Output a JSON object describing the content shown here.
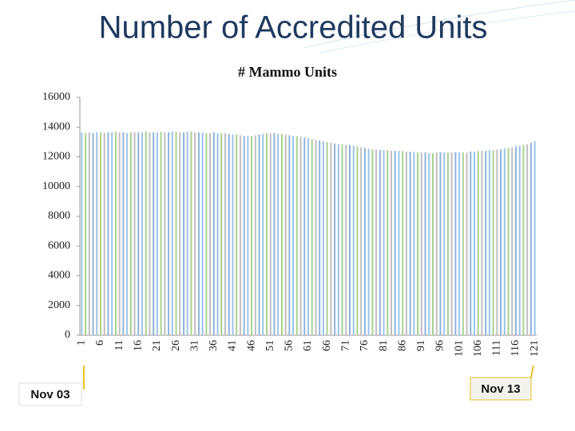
{
  "slide_title": "Number of Accredited Units",
  "chart_data": {
    "type": "bar",
    "title": "# Mammo Units",
    "categories": [
      "1",
      null,
      null,
      null,
      null,
      "6",
      null,
      null,
      null,
      null,
      "11",
      null,
      null,
      null,
      null,
      "16",
      null,
      null,
      null,
      null,
      "21",
      null,
      null,
      null,
      null,
      "26",
      null,
      null,
      null,
      null,
      "31",
      null,
      null,
      null,
      null,
      "36",
      null,
      null,
      null,
      null,
      "41",
      null,
      null,
      null,
      null,
      "46",
      null,
      null,
      null,
      null,
      "51",
      null,
      null,
      null,
      null,
      "56",
      null,
      null,
      null,
      null,
      "61",
      null,
      null,
      null,
      null,
      "66",
      null,
      null,
      null,
      null,
      "71",
      null,
      null,
      null,
      null,
      "76",
      null,
      null,
      null,
      null,
      "81",
      null,
      null,
      null,
      null,
      "86",
      null,
      null,
      null,
      null,
      "91",
      null,
      null,
      null,
      null,
      "96",
      null,
      null,
      null,
      null,
      "101",
      null,
      null,
      null,
      null,
      "106",
      null,
      null,
      null,
      null,
      "111",
      null,
      null,
      null,
      null,
      "116",
      null,
      null,
      null,
      null,
      "121"
    ],
    "values": [
      13650,
      13600,
      13650,
      13600,
      13650,
      13650,
      13600,
      13650,
      13650,
      13700,
      13650,
      13650,
      13600,
      13650,
      13650,
      13650,
      13650,
      13700,
      13650,
      13650,
      13650,
      13700,
      13650,
      13650,
      13700,
      13700,
      13650,
      13650,
      13700,
      13700,
      13650,
      13650,
      13650,
      13600,
      13600,
      13650,
      13600,
      13600,
      13600,
      13550,
      13500,
      13500,
      13450,
      13400,
      13400,
      13400,
      13450,
      13500,
      13550,
      13600,
      13600,
      13600,
      13550,
      13550,
      13500,
      13450,
      13400,
      13400,
      13350,
      13300,
      13250,
      13200,
      13150,
      13100,
      13050,
      13000,
      12950,
      12900,
      12850,
      12850,
      12800,
      12800,
      12750,
      12700,
      12650,
      12600,
      12550,
      12500,
      12500,
      12450,
      12450,
      12450,
      12400,
      12400,
      12400,
      12400,
      12350,
      12350,
      12300,
      12300,
      12300,
      12300,
      12250,
      12250,
      12300,
      12300,
      12300,
      12300,
      12300,
      12300,
      12300,
      12300,
      12300,
      12350,
      12350,
      12400,
      12400,
      12400,
      12450,
      12450,
      12500,
      12500,
      12550,
      12600,
      12650,
      12700,
      12750,
      12800,
      12850,
      12950,
      13050
    ],
    "colors": [
      "#9dc3e6",
      "#a9d18e",
      "#bfbfbf",
      "#8fb4d9"
    ],
    "ylim": [
      0,
      16000
    ],
    "yticks": [
      0,
      2000,
      4000,
      6000,
      8000,
      10000,
      12000,
      14000,
      16000
    ],
    "grid": false,
    "annotations": [
      "Nov 03",
      "Nov 13"
    ]
  }
}
